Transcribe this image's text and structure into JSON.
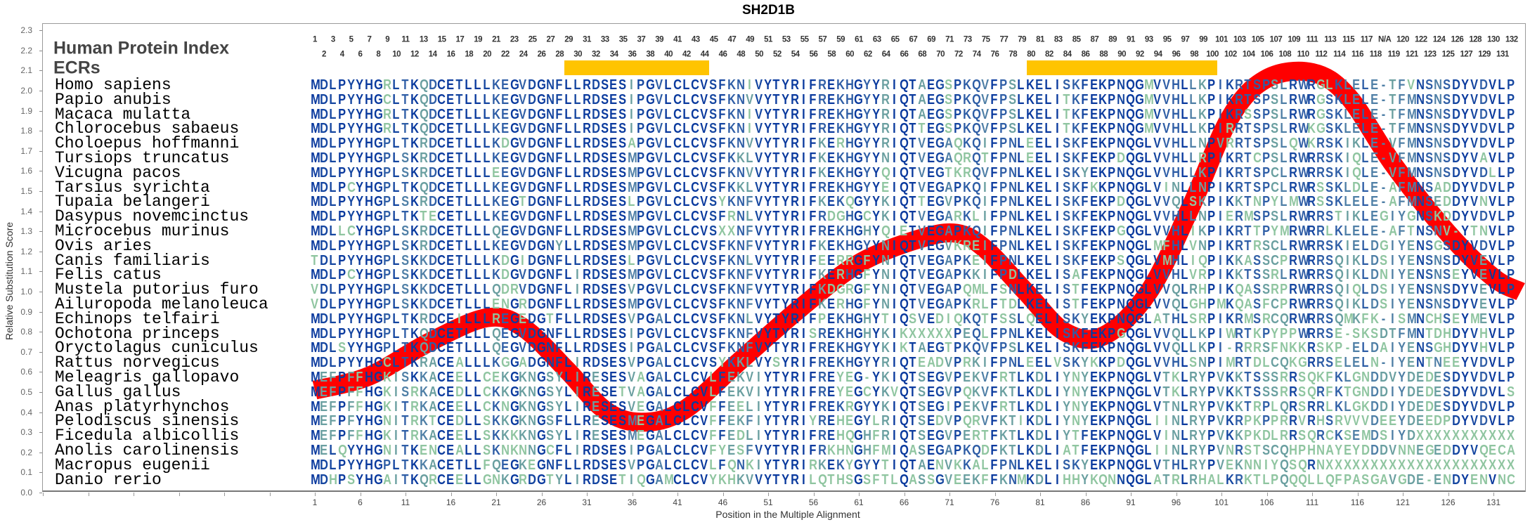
{
  "title": "SH2D1B",
  "headers": {
    "protein_index": "Human Protein Index",
    "ecrs": "ECRs"
  },
  "colors": {
    "curve": "#ff0000",
    "ecr": "#ffc400",
    "conserved": "#0a3a9e",
    "variable": "#8fc5a0"
  },
  "human_protein_index": [
    "1",
    "2",
    "3",
    "4",
    "5",
    "6",
    "7",
    "8",
    "9",
    "10",
    "11",
    "12",
    "13",
    "14",
    "15",
    "16",
    "17",
    "18",
    "19",
    "20",
    "21",
    "22",
    "23",
    "24",
    "25",
    "26",
    "27",
    "28",
    "29",
    "30",
    "31",
    "32",
    "33",
    "34",
    "35",
    "36",
    "37",
    "38",
    "39",
    "40",
    "41",
    "42",
    "43",
    "44",
    "45",
    "46",
    "47",
    "48",
    "49",
    "50",
    "51",
    "52",
    "53",
    "54",
    "55",
    "56",
    "57",
    "58",
    "59",
    "60",
    "61",
    "62",
    "63",
    "64",
    "65",
    "66",
    "67",
    "68",
    "69",
    "70",
    "71",
    "72",
    "73",
    "74",
    "75",
    "76",
    "77",
    "78",
    "79",
    "80",
    "81",
    "82",
    "83",
    "84",
    "85",
    "86",
    "87",
    "88",
    "89",
    "90",
    "91",
    "92",
    "93",
    "94",
    "95",
    "96",
    "97",
    "98",
    "99",
    "100",
    "101",
    "102",
    "103",
    "104",
    "105",
    "106",
    "107",
    "108",
    "109",
    "110",
    "111",
    "112",
    "113",
    "114",
    "115",
    "116",
    "117",
    "118",
    "N/A",
    "119",
    "120",
    "121",
    "122",
    "123",
    "124",
    "125",
    "126",
    "127",
    "128",
    "129",
    "130",
    "131",
    "132"
  ],
  "ecr_regions": [
    {
      "start": 29,
      "end": 44
    },
    {
      "start": 80,
      "end": 100
    }
  ],
  "alignment": [
    {
      "species": "Homo sapiens",
      "sequence": "MDLPYYHGRLTKQDCETLLLKEGVDGNFLLRDSESIPGVLCLCVSFKNIVYTYRIFREKHGYYRIQTAEGSPKQVFPSLKELISKFEKPNQGMVVHLLKPIKRTSPSLRWRGLKLELE-TFVNSNSDYVDVLP"
    },
    {
      "species": "Papio anubis",
      "sequence": "MDLPYYHGCLTKQDCETLLLKEGVDGNFLLRDSESIPGVLCLCVSFKNVVYTYRIFREKHGYYRIQTAEGSPKQVFPSLKELITKFEKPNQGMVVHLLKPIKRTSPSLRWRGSKLELE-TFMNSNSDYVDVLP"
    },
    {
      "species": "Macaca mulatta",
      "sequence": "MDLPYYHGRLTKQDCETLLLKEGVDGNFLLRDSESIPGVLCLCVSFKNIVYTYRIFREKHGYYRIQTAEGSPKQVFPSLKELITKFEKPNQGMVVHLLKPIKRSSPSLRWRGSKLELE-TFMNSNSDYVDVLP"
    },
    {
      "species": "Chlorocebus sabaeus",
      "sequence": "MDLPYYHGRLTKQDCETLLLKEGVDGNFLLRDSESIPGVLCLCVSFKNIVYTYRIFREKHGYYRIQTTEGSPKQVFPSLKELITKFEKPNQGMVVHLLKPIRRTSPSLRWKGSKLELE-TFMNSNSDYVDVLP"
    },
    {
      "species": "Choloepus hoffmanni",
      "sequence": "MDLPYYHGPLTKRDCETLLLKDGVDGNFLLRDSESAPGVLCLCVSFKNVVYTYRIFKERHGYYRIQTVEGAQKQIFPNLEELISKFEKPNQGLVVHLLNPVRRTSPSLQWKRSKIKLE-VFMNSNSDYVDVLP"
    },
    {
      "species": "Tursiops truncatus",
      "sequence": "MDLPYYHGPLSKRDCETLLLKEGVDGNFLLRDSESMPGVLCLCVSFKKLVYTYRIFKEKHGYYNIQTVEGAQRQTFPNLEELISKFEKPDQGLVVHLLRPIKRTCPSLRWRRSKIQLE-VFMNSNSDYVAVLP"
    },
    {
      "species": "Vicugna pacos",
      "sequence": "MDLPYYHGPLSKRDCETLLLEEGVDGNFLLRDSESMPGVLCLCVSFKNVVYTYRIFKEKHGYYQIQTVEGTKRQVFPNLKELISKYEKPNQGLVVHLLKPIKRTSPCLRWRRSKIQLE-VFMNSNSDYVDLLP"
    },
    {
      "species": "Tarsius syrichta",
      "sequence": "MDLPCYHGPLTKQDCETLLLKEGVDGNFLLRDSESMPGVLCLCVSFKKLVYTYRIFREKHGYYEIQTVEGAPKQIFPNLKELISKFKKPNQGLVINLLNPIKRTSPCLRWRSSKLDLE-AFMNSADDYVDVLP"
    },
    {
      "species": "Tupaia belangeri",
      "sequence": "MDLPYYHGPLSKRDCETLLLKEGTDGNFLLRDSESLPGVLCLCVSYKNFVYTYRIFKEKQGYYKIQTTEGVPKQIFPNLKELISKFEKPDQGLVVQLSKPIKKTNPYLMWRSSKLELE-AFMNSEDDYVNVLP"
    },
    {
      "species": "Dasypus novemcinctus",
      "sequence": "MDLPYYHGPLTKTECETLLLKEGVDGNFLLRDSESMPGVLCLCVSFRNLVYTYRIFRDGHGCYKIQTVEGARKLIFPNLKELISKFEKPNQGLVVHLLNPIERMSPSLRWRRSTIKLEGIYGNSKDDYVDVLP"
    },
    {
      "species": "Microcebus murinus",
      "sequence": "MDLLCYHGPLSKRDCETLLLQEGVDGNFLLRDSESMPGVLCLCVSXXNFVYTYRIFREKHGHYQIETVEGAPKQIFPNLKELISKFEKPGQGLVVHLIKPIKRTTPYMRWRRLKLELE-AFTNSNV-YTNVLP"
    },
    {
      "species": "Ovis aries",
      "sequence": "MDLPYYHGPLSKRDCETLLLKEGVDGNYLLRDSESMPGVLCLCVSFKNFVYTYRIFKEKHGYYNIQTVEGVKREIFPNLKELISKFEKPNQGLMFHLVNPIKRTRSCLRWRRSKIELDGIYENSGSDYVDVLP"
    },
    {
      "species": "Canis familiaris",
      "sequence": "TDLPYYHGPLSKKDCETLLLKDGIDGNFLLRDSESLPGVLCLCVSFKNLVYTYRIFEERRGFYNIQTVEGAPKEIFPNLKELISKFEKPSQGLVMHLIQPIKKASSCPRWRRSQIKLDSIYENSNSDYVEVLP"
    },
    {
      "species": "Felis catus",
      "sequence": "MDLPCYHGPLSKKDCETLLLKDGVDGNFLIRDSESMPGVLCLCVSFKNFVYTYRIFKERHGFYNIQTVEGAPKKIFPDLKELISAFEKPNQGLVVHLVRPIKKTSSRLRWRRSQIKLDNIYENSNSEYVEVLP"
    },
    {
      "species": "Mustela putorius furo",
      "sequence": "VDLPYYHGPLSKKDCETLLLQDRVDGNFLIRDSESVPGVLCLCVSFKNFVYTYRIFKDGRGFYNIQTVEGAPQMLFSNLKELISTFEKPNQGLVVQLRHPIKQASSRPRWRRSQIQLDSIYENSNSDYVEVLP"
    },
    {
      "species": "Ailuropoda melanoleuca",
      "sequence": "VDLPYYHGPLSKKDCETLLLENGRDGNFLLRDSESMPGVLCLCVSFKNFVYTYRIFKERHGFYNIQTVEGAPKRLFTDLKELISTFEKPNQGLVVQLGHPMKQASFCPRWRRSQIKLDSIYENSNSDYVEVLP"
    },
    {
      "species": "Echinops telfairi",
      "sequence": "MDLPYYHGPLTKRDCEILLLREGEDGTFLLRDSESVPGALCLCVSFKNLVYTYRIFPEKHGHYTIQSVEDIQKQTFSSLQELISKYEKPNQGLATHLSRPIKRMSRCQRWRRSQMKFK-ISMNCHSEYMEVLP"
    },
    {
      "species": "Ochotona princeps",
      "sequence": "MDLPYYHGPLTKQDCETLLLQEGVDGNFLLRDSESIPGVLCLCVSFKNFVYTYRISREKHGHYKIKXXXXXPEQLFPNLKELISKFEKPGQGLVVQLLKPIWRTKPYPPWRRSE-SKSDTFMNTDHDYVHVLP"
    },
    {
      "species": "Oryctolagus cuniculus",
      "sequence": "MDLSYYHGPLTKQDCETLLLQEGVDGNFLLRDSESIPGALCLCVSFKNFVYTYRIFREKHGYYKIKTAEGTPKQVFPSLKELISKFEKPNQGLVVQLLKPI-RRRSFNKKRSKP-ELDAIYENSGHDYVHVLP"
    },
    {
      "species": "Rattus norvegicus",
      "sequence": "MDLPYYHGCLTKRACEALLLKGGADGNFLIRDSESVPGALCLCVSYKKLVYSYRIFREKHGYYRIQTEADVPRKIFPNLEELVSKYKKPDQGLVVHLSNPIMRTDLCQKGRRSELELN-IYENTNEEYVDVLP"
    },
    {
      "species": "Meleagris gallopavo",
      "sequence": "MEFPFFHGKISKKACEELLCEKGKNGSYLIRESESVAGALCLCVLFEKVIYTYRIFREYEG-YKIQTSEGVPEKVFRTLKDLIYNYEKPNQGLVTKLRYPVKKTSSSRRSQKFKLGNDDVYDEDESDYVDVLP"
    },
    {
      "species": "Gallus gallus",
      "sequence": "MEFPFFHGKISRKACEDLLCKKGKNGSYLIRESETVAGALCLCVLFEKVIYTYRIFREYEGCYKVQTSEGVPQKVFKTLKDLIYNYEKPNQGLVTKLRYPVKKTSSSRRSQRFKTGNDDIYDEDESDYVDVLS"
    },
    {
      "species": "Anas platyrhynchos",
      "sequence": "MEFPFFHGKITRKACEELLCKNGKNGSYLIRESESVEGALCLCVFFEELIYTYRIFREKRGYYKIQTSEGIPEKVFRTLKDLIYNYEKPNQGLVTNLRYPVKKTRPLQRSRRLKLGKDDIYDEDESDYVDVLP"
    },
    {
      "species": "Pelodiscus sinensis",
      "sequence": "MEFPFYHGNITRKTCEDLLSKKGKNGSFLLRESESMEGALCLCVFFEKFIYTYRIYREHEGYLRIQTSEDVPQRVFKTIKDLIYNYEKPNQGLIINLRYPVKRPKPPRRVRHSRVVVDEEYDEEDPDYVDVLP"
    },
    {
      "species": "Ficedula albicollis",
      "sequence": "MEFPFFHGKITRKACEELLSKKKKNGSYLIRESESMEGALCLCVFFEDLIYTYRIFREHQGHFRIQTSEGVPERTFKTLKDLIYTFEKPNQGLVINLRYPVKKPKDLRRSQRCKSEMDSIYDXXXXXXXXXXX"
    },
    {
      "species": "Anolis carolinensis",
      "sequence": "MELQYYHGNITKENCEALLSKNKNNGCFLIRDSESIPGALCLCVFYESFVYTYRIFRKHNGHFMIQASEGAPKQDFKTLKDLIATFEKPNQGLIINLRYPVNRSTSCQHPHNAYEYDDDVNNEGEDDYVQECA"
    },
    {
      "species": "Macropus eugenii",
      "sequence": "MDLPYYHGPLTKKACETLLFQEGKEGNFLLRDSESVPGALCLCVLFQNKIYTYRIRKEKYGYYTIQTAENVKKALFPNLKELISKYEKPNQGLVTHLRYPVEKNNIYQSQRNXXXXXXXXXXXXXXXXXXXXX"
    },
    {
      "species": "Danio rerio",
      "sequence": "MDHPSYHGAITKQRCEELLGNKGRDGTYLIRDSETIQGAMCLCVYKHKVVYTYRILQTHSGSFTLQASSGVEEKFFKNMKDLIHHYKQNNQGLATRLRHALKRKTLPQQQLLQFPASGAVGDE-ENDYENVNC"
    }
  ],
  "chart_data": {
    "type": "line",
    "title": "SH2D1B",
    "xlabel": "Position in the Multiple Alignment",
    "ylabel": "Relative Substitution Score",
    "ylim": [
      0.0,
      2.3
    ],
    "yticks": [
      "0.0",
      "0.1",
      "0.2",
      "0.3",
      "0.4",
      "0.5",
      "0.6",
      "0.7",
      "0.8",
      "0.9",
      "1.0",
      "1.1",
      "1.2",
      "1.3",
      "1.4",
      "1.5",
      "1.6",
      "1.7",
      "1.8",
      "1.9",
      "2.0",
      "2.1",
      "2.2",
      "2.3"
    ],
    "xticks": [
      "1",
      "6",
      "11",
      "16",
      "21",
      "26",
      "31",
      "36",
      "41",
      "46",
      "51",
      "56",
      "61",
      "66",
      "71",
      "76",
      "81",
      "86",
      "91",
      "96",
      "101",
      "106",
      "111",
      "116",
      "121",
      "126",
      "131"
    ],
    "grid": false,
    "x": [
      1,
      7,
      13.7,
      20,
      24,
      28.8,
      33,
      37,
      41.7,
      48,
      54.6,
      61,
      67.5,
      71.8,
      75,
      79.4,
      83.7,
      88,
      93,
      97.7,
      102,
      106,
      111,
      115,
      120,
      126,
      131,
      134
    ],
    "y": [
      0.51,
      0.58,
      0.75,
      0.87,
      0.82,
      0.61,
      0.41,
      0.35,
      0.41,
      0.66,
      0.92,
      1.14,
      1.26,
      1.29,
      1.21,
      1.0,
      0.8,
      0.78,
      1.0,
      1.43,
      1.87,
      2.06,
      2.09,
      1.97,
      1.63,
      1.29,
      1.07,
      1.0
    ]
  }
}
